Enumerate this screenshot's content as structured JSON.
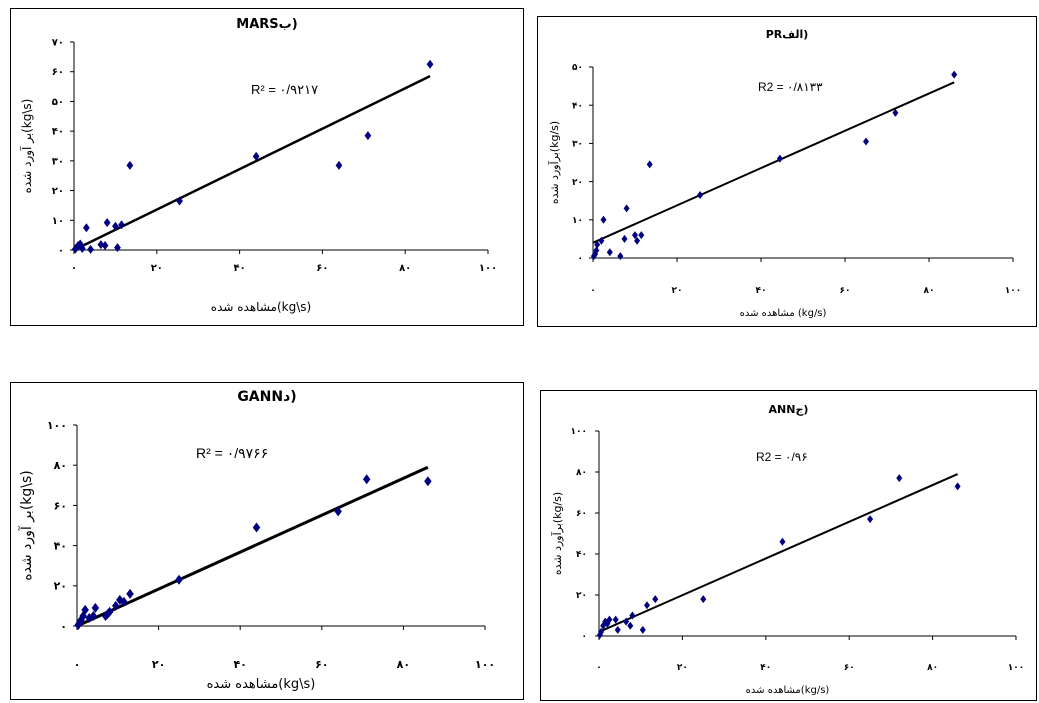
{
  "chart_data": [
    {
      "id": "mars",
      "type": "scatter",
      "title": "MARSب)",
      "xlabel": "مشاهده شده(kg\\s)",
      "ylabel": "بر آورد شده(kg\\s)",
      "annotation": "R² = ۰/۹۲۱۷",
      "xlim": [
        0,
        100
      ],
      "ylim": [
        0,
        70
      ],
      "xticks": [
        0,
        20,
        40,
        60,
        80,
        100
      ],
      "yticks": [
        0,
        10,
        20,
        30,
        40,
        50,
        60,
        70
      ],
      "xtick_labels": [
        "۰",
        "۲۰",
        "۴۰",
        "۶۰",
        "۸۰",
        "۱۰۰"
      ],
      "ytick_labels": [
        "۰",
        "۱۰",
        "۲۰",
        "۳۰",
        "۴۰",
        "۵۰",
        "۶۰",
        "۷۰"
      ],
      "grid": false,
      "marker_color": "#000080",
      "line_color": "#000000",
      "points": [
        [
          0.3,
          0.3
        ],
        [
          0.6,
          0.8
        ],
        [
          1,
          1.5
        ],
        [
          1.5,
          2
        ],
        [
          2,
          0.5
        ],
        [
          3,
          7.5
        ],
        [
          4,
          0.2
        ],
        [
          6.5,
          1.8
        ],
        [
          7.5,
          1.5
        ],
        [
          8,
          9.2
        ],
        [
          10,
          8
        ],
        [
          10.5,
          0.8
        ],
        [
          11.5,
          8.5
        ],
        [
          13.5,
          28.5
        ],
        [
          25.5,
          16.5
        ],
        [
          44,
          31.5
        ],
        [
          64,
          28.5
        ],
        [
          71,
          38.5
        ],
        [
          86,
          62.5
        ]
      ],
      "trendline": [
        [
          0,
          0
        ],
        [
          86,
          58.5
        ]
      ]
    },
    {
      "id": "pr",
      "type": "scatter",
      "title": "PRالف)",
      "xlabel": "مشاهده شده (kg/s)",
      "ylabel": "برآورد شده(kg/s)",
      "annotation": "R2 = ۰/۸۱۳۳",
      "xlim": [
        0,
        100
      ],
      "ylim": [
        0,
        50
      ],
      "xticks": [
        0,
        20,
        40,
        60,
        80,
        100
      ],
      "yticks": [
        0,
        10,
        20,
        30,
        40,
        50
      ],
      "xtick_labels": [
        "۰",
        "۲۰",
        "۴۰",
        "۶۰",
        "۸۰",
        "۱۰۰"
      ],
      "ytick_labels": [
        "۰",
        "۱۰",
        "۲۰",
        "۳۰",
        "۴۰",
        "۵۰"
      ],
      "grid": false,
      "marker_color": "#000080",
      "line_color": "#000000",
      "points": [
        [
          0.2,
          0.5
        ],
        [
          0.5,
          1
        ],
        [
          0.8,
          2
        ],
        [
          1,
          3.5
        ],
        [
          2,
          4.5
        ],
        [
          2.5,
          10
        ],
        [
          4,
          1.5
        ],
        [
          6.5,
          0.5
        ],
        [
          7.5,
          5
        ],
        [
          8,
          13
        ],
        [
          10,
          6
        ],
        [
          10.5,
          4.5
        ],
        [
          11.5,
          6
        ],
        [
          13.5,
          24.5
        ],
        [
          25.5,
          16.5
        ],
        [
          44.5,
          26
        ],
        [
          65,
          30.5
        ],
        [
          72,
          38
        ],
        [
          86,
          48
        ]
      ],
      "trendline": [
        [
          0,
          4
        ],
        [
          86,
          46
        ]
      ]
    },
    {
      "id": "gann",
      "type": "scatter",
      "title": "GANNد)",
      "xlabel": "مشاهده شده(kg\\s)",
      "ylabel": "بر آورد شده(kg\\s)",
      "annotation": "R² = ۰/۹۷۶۶",
      "xlim": [
        0,
        100
      ],
      "ylim": [
        0,
        100
      ],
      "xticks": [
        0,
        20,
        40,
        60,
        80,
        100
      ],
      "yticks": [
        0,
        20,
        40,
        60,
        80,
        100
      ],
      "xtick_labels": [
        "۰",
        "۲۰",
        "۴۰",
        "۶۰",
        "۸۰",
        "۱۰۰"
      ],
      "ytick_labels": [
        "۰",
        "۲۰",
        "۴۰",
        "۶۰",
        "۸۰",
        "۱۰۰"
      ],
      "grid": false,
      "marker_color": "#000080",
      "line_color": "#000000",
      "points": [
        [
          0.3,
          0.5
        ],
        [
          0.6,
          1.5
        ],
        [
          1,
          3
        ],
        [
          1.5,
          5
        ],
        [
          2,
          8
        ],
        [
          3,
          4
        ],
        [
          4,
          5
        ],
        [
          4.5,
          9
        ],
        [
          7,
          5
        ],
        [
          7.5,
          6
        ],
        [
          8,
          7
        ],
        [
          9.5,
          10
        ],
        [
          10.5,
          13
        ],
        [
          11.5,
          12
        ],
        [
          13,
          16
        ],
        [
          25,
          23
        ],
        [
          44,
          49
        ],
        [
          64,
          57
        ],
        [
          71,
          73
        ],
        [
          86,
          72
        ]
      ],
      "trendline": [
        [
          0,
          0
        ],
        [
          86,
          79
        ]
      ]
    },
    {
      "id": "ann",
      "type": "scatter",
      "title": "ANNج)",
      "xlabel": "مشاهده شده(kg/s)",
      "ylabel": "برآورد شده(kg/s)",
      "annotation": "R2 = ۰/۹۶",
      "xlim": [
        0,
        100
      ],
      "ylim": [
        0,
        100
      ],
      "xticks": [
        0,
        20,
        40,
        60,
        80,
        100
      ],
      "yticks": [
        0,
        20,
        40,
        60,
        80,
        100
      ],
      "xtick_labels": [
        "۰",
        "۲۰",
        "۴۰",
        "۶۰",
        "۸۰",
        "۱۰۰"
      ],
      "ytick_labels": [
        "۰",
        "۲۰",
        "۴۰",
        "۶۰",
        "۸۰",
        "۱۰۰"
      ],
      "grid": false,
      "marker_color": "#000080",
      "line_color": "#000000",
      "points": [
        [
          0.2,
          0.5
        ],
        [
          0.5,
          2
        ],
        [
          1,
          5
        ],
        [
          1.5,
          7
        ],
        [
          2,
          6
        ],
        [
          2.5,
          8
        ],
        [
          4,
          8
        ],
        [
          4.5,
          3
        ],
        [
          6.5,
          7
        ],
        [
          7.5,
          5
        ],
        [
          8,
          10
        ],
        [
          10.5,
          3
        ],
        [
          11.5,
          15
        ],
        [
          13.5,
          18
        ],
        [
          25,
          18
        ],
        [
          44,
          46
        ],
        [
          65,
          57
        ],
        [
          72,
          77
        ],
        [
          86,
          73
        ]
      ],
      "trendline": [
        [
          0,
          2
        ],
        [
          86,
          79
        ]
      ]
    }
  ]
}
